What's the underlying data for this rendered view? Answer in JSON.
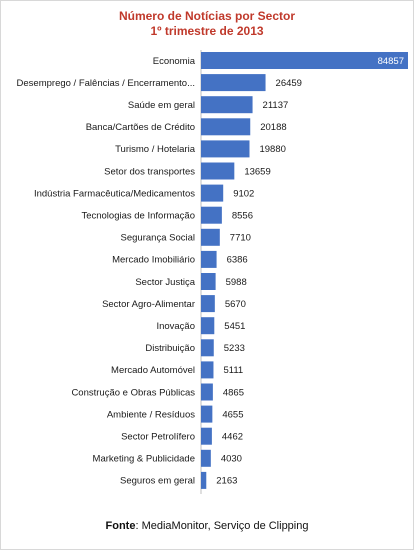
{
  "chart_data": {
    "type": "bar",
    "orientation": "horizontal",
    "title": "Número de Notícias por Sector",
    "subtitle": "1º trimestre de 2013",
    "categories": [
      "Economia",
      "Desemprego / Falências / Encerramento...",
      "Saúde em geral",
      "Banca/Cartões de Crédito",
      "Turismo / Hotelaria",
      "Setor dos transportes",
      "Indústria Farmacêutica/Medicamentos",
      "Tecnologias de Informação",
      "Segurança Social",
      "Mercado Imobiliário",
      "Sector Justiça",
      "Sector Agro-Alimentar",
      "Inovação",
      "Distribuição",
      "Mercado Automóvel",
      "Construção e Obras Públicas",
      "Ambiente / Resíduos",
      "Sector Petrolífero",
      "Marketing & Publicidade",
      "Seguros em geral"
    ],
    "values": [
      84857,
      26459,
      21137,
      20188,
      19880,
      13659,
      9102,
      8556,
      7710,
      6386,
      5988,
      5670,
      5451,
      5233,
      5111,
      4865,
      4655,
      4462,
      4030,
      2163
    ],
    "xlim": [
      0,
      84857
    ],
    "grid": false,
    "legend": "none",
    "bar_color": "#4472c4",
    "title_color": "#c0392b"
  },
  "footer": {
    "source_label": "Fonte",
    "source_text": ": MediaMonitor, Serviço de Clipping"
  }
}
